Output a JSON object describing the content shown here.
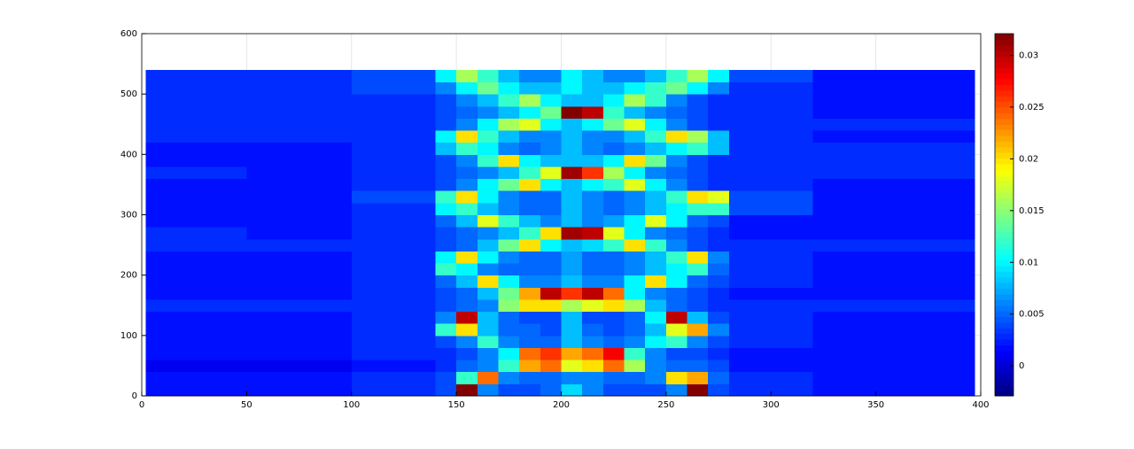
{
  "chart_data": {
    "type": "heatmap",
    "xbins": [
      2,
      50,
      100,
      140,
      150,
      160,
      170,
      180,
      190,
      200,
      210,
      220,
      230,
      240,
      250,
      260,
      270,
      280,
      320,
      397
    ],
    "ybins": [
      0,
      20,
      40,
      60,
      80,
      100,
      120,
      140,
      160,
      180,
      200,
      220,
      240,
      260,
      280,
      300,
      320,
      340,
      360,
      380,
      400,
      420,
      440,
      460,
      480,
      500,
      520,
      540
    ],
    "z": [
      [
        0.002,
        0.002,
        0.003,
        0.004,
        0.032,
        0.006,
        0.004,
        0.004,
        0.005,
        0.009,
        0.006,
        0.004,
        0.004,
        0.004,
        0.006,
        0.032,
        0.004,
        0.003,
        0.002
      ],
      [
        0.002,
        0.002,
        0.003,
        0.004,
        0.012,
        0.024,
        0.006,
        0.005,
        0.005,
        0.006,
        0.006,
        0.005,
        0.005,
        0.006,
        0.02,
        0.022,
        0.005,
        0.003,
        0.002
      ],
      [
        0.001,
        0.001,
        0.002,
        0.003,
        0.005,
        0.006,
        0.012,
        0.022,
        0.024,
        0.018,
        0.02,
        0.024,
        0.016,
        0.006,
        0.005,
        0.005,
        0.004,
        0.002,
        0.002
      ],
      [
        0.002,
        0.002,
        0.003,
        0.003,
        0.004,
        0.006,
        0.01,
        0.024,
        0.026,
        0.022,
        0.024,
        0.028,
        0.012,
        0.006,
        0.004,
        0.004,
        0.003,
        0.002,
        0.002
      ],
      [
        0.002,
        0.002,
        0.003,
        0.004,
        0.006,
        0.012,
        0.006,
        0.005,
        0.005,
        0.008,
        0.006,
        0.005,
        0.006,
        0.01,
        0.012,
        0.006,
        0.004,
        0.003,
        0.002
      ],
      [
        0.002,
        0.002,
        0.003,
        0.012,
        0.02,
        0.008,
        0.005,
        0.005,
        0.004,
        0.008,
        0.005,
        0.004,
        0.005,
        0.008,
        0.018,
        0.022,
        0.006,
        0.003,
        0.002
      ],
      [
        0.002,
        0.002,
        0.003,
        0.006,
        0.03,
        0.008,
        0.005,
        0.004,
        0.004,
        0.008,
        0.004,
        0.004,
        0.005,
        0.01,
        0.03,
        0.008,
        0.004,
        0.003,
        0.002
      ],
      [
        0.003,
        0.003,
        0.003,
        0.004,
        0.005,
        0.006,
        0.015,
        0.02,
        0.02,
        0.016,
        0.018,
        0.02,
        0.016,
        0.008,
        0.005,
        0.004,
        0.003,
        0.003,
        0.003
      ],
      [
        0.002,
        0.002,
        0.003,
        0.004,
        0.005,
        0.008,
        0.014,
        0.022,
        0.03,
        0.026,
        0.03,
        0.024,
        0.01,
        0.006,
        0.005,
        0.004,
        0.003,
        0.002,
        0.002
      ],
      [
        0.002,
        0.002,
        0.003,
        0.005,
        0.008,
        0.02,
        0.01,
        0.006,
        0.006,
        0.008,
        0.006,
        0.006,
        0.01,
        0.02,
        0.01,
        0.005,
        0.004,
        0.003,
        0.002
      ],
      [
        0.002,
        0.002,
        0.003,
        0.012,
        0.01,
        0.006,
        0.005,
        0.005,
        0.005,
        0.007,
        0.005,
        0.005,
        0.006,
        0.008,
        0.01,
        0.012,
        0.005,
        0.003,
        0.002
      ],
      [
        0.002,
        0.002,
        0.003,
        0.01,
        0.02,
        0.01,
        0.006,
        0.005,
        0.005,
        0.007,
        0.005,
        0.005,
        0.006,
        0.008,
        0.012,
        0.02,
        0.006,
        0.003,
        0.002
      ],
      [
        0.003,
        0.003,
        0.003,
        0.004,
        0.005,
        0.008,
        0.014,
        0.02,
        0.01,
        0.008,
        0.009,
        0.012,
        0.02,
        0.012,
        0.006,
        0.004,
        0.003,
        0.003,
        0.003
      ],
      [
        0.003,
        0.002,
        0.003,
        0.004,
        0.005,
        0.006,
        0.008,
        0.012,
        0.02,
        0.031,
        0.03,
        0.018,
        0.01,
        0.006,
        0.005,
        0.004,
        0.003,
        0.002,
        0.002
      ],
      [
        0.002,
        0.002,
        0.003,
        0.005,
        0.008,
        0.018,
        0.012,
        0.008,
        0.006,
        0.008,
        0.006,
        0.007,
        0.01,
        0.018,
        0.01,
        0.005,
        0.004,
        0.002,
        0.002
      ],
      [
        0.002,
        0.002,
        0.003,
        0.01,
        0.012,
        0.008,
        0.006,
        0.005,
        0.005,
        0.008,
        0.006,
        0.005,
        0.006,
        0.008,
        0.01,
        0.012,
        0.012,
        0.004,
        0.002
      ],
      [
        0.002,
        0.002,
        0.004,
        0.012,
        0.02,
        0.01,
        0.006,
        0.005,
        0.005,
        0.008,
        0.006,
        0.005,
        0.006,
        0.008,
        0.012,
        0.02,
        0.018,
        0.004,
        0.002
      ],
      [
        0.002,
        0.002,
        0.003,
        0.004,
        0.006,
        0.01,
        0.014,
        0.02,
        0.01,
        0.008,
        0.01,
        0.012,
        0.018,
        0.01,
        0.006,
        0.004,
        0.003,
        0.003,
        0.002
      ],
      [
        0.003,
        0.002,
        0.003,
        0.004,
        0.005,
        0.006,
        0.008,
        0.012,
        0.018,
        0.031,
        0.026,
        0.016,
        0.01,
        0.006,
        0.005,
        0.004,
        0.003,
        0.003,
        0.003
      ],
      [
        0.002,
        0.002,
        0.003,
        0.004,
        0.006,
        0.012,
        0.02,
        0.01,
        0.008,
        0.008,
        0.008,
        0.01,
        0.02,
        0.014,
        0.006,
        0.004,
        0.003,
        0.003,
        0.003
      ],
      [
        0.002,
        0.002,
        0.003,
        0.008,
        0.012,
        0.01,
        0.006,
        0.005,
        0.006,
        0.008,
        0.006,
        0.005,
        0.006,
        0.008,
        0.01,
        0.012,
        0.008,
        0.003,
        0.003
      ],
      [
        0.003,
        0.003,
        0.003,
        0.01,
        0.02,
        0.012,
        0.008,
        0.006,
        0.006,
        0.008,
        0.006,
        0.006,
        0.008,
        0.012,
        0.02,
        0.016,
        0.008,
        0.003,
        0.002
      ],
      [
        0.003,
        0.003,
        0.003,
        0.004,
        0.006,
        0.01,
        0.016,
        0.018,
        0.01,
        0.008,
        0.01,
        0.014,
        0.018,
        0.01,
        0.006,
        0.004,
        0.003,
        0.003,
        0.003
      ],
      [
        0.003,
        0.003,
        0.003,
        0.004,
        0.005,
        0.006,
        0.008,
        0.01,
        0.014,
        0.032,
        0.03,
        0.012,
        0.008,
        0.006,
        0.005,
        0.004,
        0.003,
        0.003,
        0.002
      ],
      [
        0.003,
        0.003,
        0.003,
        0.004,
        0.006,
        0.008,
        0.012,
        0.016,
        0.01,
        0.008,
        0.008,
        0.01,
        0.016,
        0.012,
        0.006,
        0.004,
        0.003,
        0.003,
        0.002
      ],
      [
        0.003,
        0.003,
        0.004,
        0.006,
        0.01,
        0.014,
        0.01,
        0.008,
        0.008,
        0.01,
        0.008,
        0.008,
        0.01,
        0.012,
        0.014,
        0.01,
        0.006,
        0.003,
        0.002
      ],
      [
        0.003,
        0.003,
        0.004,
        0.01,
        0.016,
        0.012,
        0.008,
        0.006,
        0.006,
        0.01,
        0.008,
        0.006,
        0.006,
        0.008,
        0.012,
        0.016,
        0.01,
        0.004,
        0.002
      ]
    ],
    "xlim": [
      0,
      400
    ],
    "xticks": [
      0,
      50,
      100,
      150,
      200,
      250,
      300,
      350,
      400
    ],
    "ylim": [
      0,
      600
    ],
    "yticks": [
      0,
      100,
      200,
      300,
      400,
      500,
      600
    ],
    "clim": [
      -0.0029,
      0.0321
    ],
    "cticks": [
      0,
      0.005,
      0.01,
      0.015,
      0.02,
      0.025,
      0.03
    ],
    "colormap": "jet",
    "grid": true
  }
}
